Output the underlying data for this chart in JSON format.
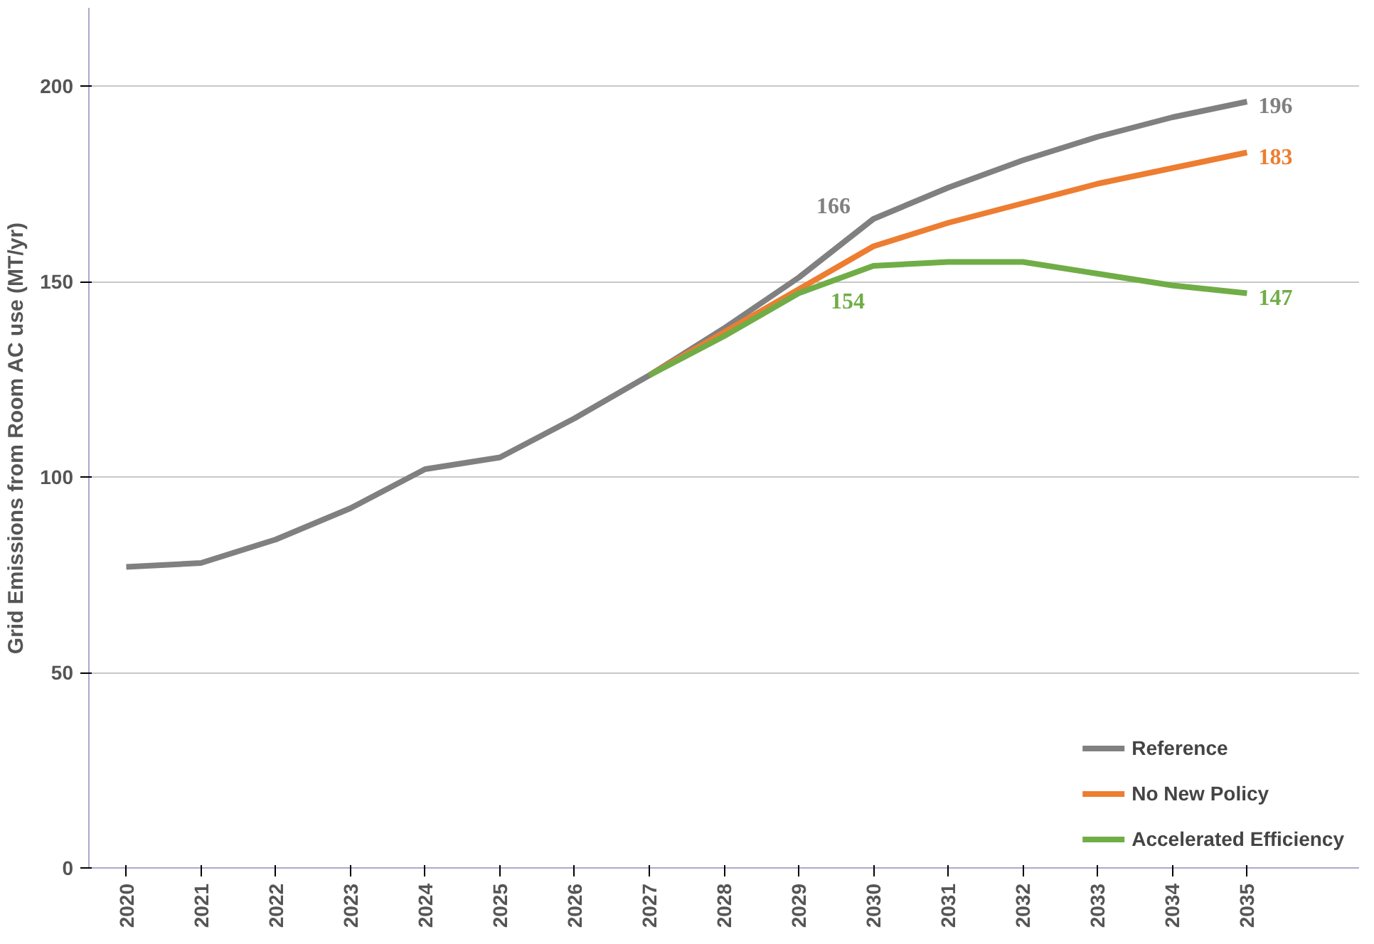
{
  "chart_data": {
    "type": "line",
    "ylabel": "Grid Emissions from Room AC use (MT/yr)",
    "categories": [
      "2020",
      "2021",
      "2022",
      "2023",
      "2024",
      "2025",
      "2026",
      "2027",
      "2028",
      "2029",
      "2030",
      "2031",
      "2032",
      "2033",
      "2034",
      "2035"
    ],
    "series": [
      {
        "name": "Reference",
        "color": "#808080",
        "values": [
          77,
          78,
          84,
          92,
          102,
          105,
          115,
          126,
          138,
          151,
          166,
          174,
          181,
          187,
          192,
          196
        ],
        "value_labels": [
          null,
          null,
          null,
          null,
          null,
          null,
          null,
          null,
          null,
          null,
          "166",
          null,
          null,
          null,
          null,
          "196"
        ]
      },
      {
        "name": "No New Policy",
        "color": "#ed7d31",
        "values": [
          null,
          null,
          null,
          null,
          null,
          null,
          null,
          126,
          137,
          148,
          159,
          165,
          170,
          175,
          179,
          183
        ],
        "value_labels": [
          null,
          null,
          null,
          null,
          null,
          null,
          null,
          null,
          null,
          null,
          null,
          null,
          null,
          null,
          null,
          "183"
        ]
      },
      {
        "name": "Accelerated Efficiency",
        "color": "#70ad47",
        "values": [
          null,
          null,
          null,
          null,
          null,
          null,
          null,
          126,
          136,
          147,
          154,
          155,
          155,
          152,
          149,
          147
        ],
        "value_labels": [
          null,
          null,
          null,
          null,
          null,
          null,
          null,
          null,
          null,
          null,
          "154",
          null,
          null,
          null,
          null,
          "147"
        ]
      }
    ],
    "ylim": [
      0,
      220
    ],
    "yticks": [
      0,
      50,
      100,
      150,
      200
    ],
    "grid": "y",
    "legend": "bottom right",
    "marker": "none",
    "line_style": "solid"
  }
}
